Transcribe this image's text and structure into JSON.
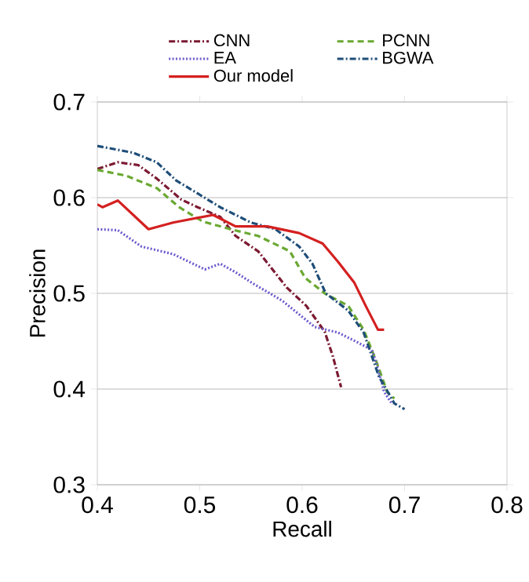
{
  "chart_data": {
    "type": "line",
    "xlabel": "Recall",
    "ylabel": "Precision",
    "xlim": [
      0.4,
      0.8
    ],
    "ylim": [
      0.3,
      0.7
    ],
    "xticks": [
      0.4,
      0.5,
      0.6,
      0.7,
      0.8
    ],
    "yticks": [
      0.3,
      0.4,
      0.5,
      0.6,
      0.7
    ],
    "grid": "y",
    "legend": "top",
    "marker": "none",
    "series": [
      {
        "name": "CNN",
        "color": "#7b1a32",
        "line_style": "dashdot",
        "x": [
          0.4,
          0.42,
          0.44,
          0.458,
          0.482,
          0.498,
          0.52,
          0.535,
          0.557,
          0.585,
          0.604,
          0.622,
          0.63,
          0.638
        ],
        "values": [
          0.63,
          0.637,
          0.634,
          0.62,
          0.598,
          0.59,
          0.58,
          0.56,
          0.544,
          0.506,
          0.487,
          0.46,
          0.434,
          0.402
        ]
      },
      {
        "name": "PCNN",
        "color": "#6aa832",
        "line_style": "dashed",
        "x": [
          0.4,
          0.428,
          0.458,
          0.48,
          0.503,
          0.534,
          0.557,
          0.588,
          0.603,
          0.622,
          0.645,
          0.66,
          0.672,
          0.683,
          0.69
        ],
        "values": [
          0.629,
          0.623,
          0.61,
          0.59,
          0.575,
          0.566,
          0.56,
          0.544,
          0.516,
          0.5,
          0.487,
          0.462,
          0.43,
          0.397,
          0.39
        ]
      },
      {
        "name": "EA",
        "color": "#6a5acd",
        "line_style": "dotted",
        "x": [
          0.4,
          0.42,
          0.443,
          0.474,
          0.505,
          0.52,
          0.535,
          0.551,
          0.581,
          0.612,
          0.635,
          0.65,
          0.668,
          0.673,
          0.68,
          0.688
        ],
        "values": [
          0.567,
          0.566,
          0.549,
          0.541,
          0.525,
          0.531,
          0.522,
          0.511,
          0.492,
          0.465,
          0.459,
          0.451,
          0.441,
          0.425,
          0.397,
          0.384
        ]
      },
      {
        "name": "BGWA",
        "color": "#1f4e79",
        "line_style": "dashdot",
        "x": [
          0.4,
          0.435,
          0.458,
          0.477,
          0.52,
          0.55,
          0.574,
          0.597,
          0.61,
          0.623,
          0.645,
          0.66,
          0.675,
          0.69,
          0.7
        ],
        "values": [
          0.654,
          0.647,
          0.637,
          0.618,
          0.59,
          0.574,
          0.567,
          0.549,
          0.531,
          0.5,
          0.482,
          0.459,
          0.413,
          0.385,
          0.379
        ]
      },
      {
        "name": "Our model",
        "color": "#d42020",
        "line_style": "solid",
        "x": [
          0.4,
          0.405,
          0.42,
          0.45,
          0.474,
          0.513,
          0.535,
          0.566,
          0.597,
          0.62,
          0.635,
          0.651,
          0.662,
          0.674,
          0.68
        ],
        "values": [
          0.593,
          0.59,
          0.597,
          0.567,
          0.574,
          0.582,
          0.57,
          0.57,
          0.563,
          0.552,
          0.533,
          0.511,
          0.487,
          0.462,
          0.462
        ]
      }
    ]
  }
}
